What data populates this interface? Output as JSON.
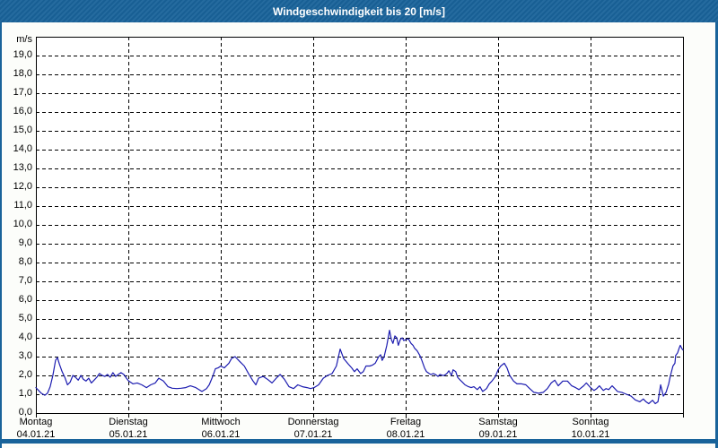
{
  "window": {
    "title": "Windgeschwindigkeit bis 20 [m/s]"
  },
  "colors": {
    "titlebar_bg": "#19639A",
    "frame": "#19639A",
    "page_bg": "#FCFDFA",
    "plot_bg": "#FFFFFF",
    "grid": "#000000",
    "series_line": "#1C1CB0",
    "title_text": "#FFFFFF",
    "axis_text": "#000000"
  },
  "chart_data": {
    "type": "line",
    "title": "Windgeschwindigkeit bis 20 [m/s]",
    "y_unit_label": "m/s",
    "ylim": [
      0,
      20
    ],
    "ytick_step": 1.0,
    "ytick_labels": [
      "0,0",
      "1,0",
      "2,0",
      "3,0",
      "4,0",
      "5,0",
      "6,0",
      "7,0",
      "8,0",
      "9,0",
      "10,0",
      "11,0",
      "12,0",
      "13,0",
      "14,0",
      "15,0",
      "16,0",
      "17,0",
      "18,0",
      "19,0"
    ],
    "grid": "dashed black horizontal lines every 1.0 m/s; dashed black vertical line at each day boundary",
    "legend": "none",
    "x_range_hours": [
      0,
      168
    ],
    "x_day_ticks": [
      {
        "day": "Montag",
        "date": "04.01.21",
        "hour": 0
      },
      {
        "day": "Dienstag",
        "date": "05.01.21",
        "hour": 24
      },
      {
        "day": "Mittwoch",
        "date": "06.01.21",
        "hour": 48
      },
      {
        "day": "Donnerstag",
        "date": "07.01.21",
        "hour": 72
      },
      {
        "day": "Freitag",
        "date": "08.01.21",
        "hour": 96
      },
      {
        "day": "Samstag",
        "date": "09.01.21",
        "hour": 120
      },
      {
        "day": "Sonntag",
        "date": "10.01.21",
        "hour": 144
      }
    ],
    "series": [
      {
        "name": "Windgeschwindigkeit",
        "color": "#1C1CB0",
        "points_hours_value": [
          [
            0.0,
            1.35
          ],
          [
            0.7,
            1.2
          ],
          [
            1.4,
            1.05
          ],
          [
            2.3,
            0.95
          ],
          [
            3.0,
            1.05
          ],
          [
            3.7,
            1.4
          ],
          [
            4.4,
            2.0
          ],
          [
            5.1,
            2.8
          ],
          [
            5.6,
            2.95
          ],
          [
            6.1,
            2.6
          ],
          [
            6.8,
            2.2
          ],
          [
            7.5,
            1.9
          ],
          [
            8.2,
            1.5
          ],
          [
            8.9,
            1.65
          ],
          [
            9.6,
            2.0
          ],
          [
            10.3,
            1.9
          ],
          [
            11.0,
            1.75
          ],
          [
            11.7,
            2.0
          ],
          [
            12.3,
            1.8
          ],
          [
            13.0,
            1.7
          ],
          [
            13.7,
            1.85
          ],
          [
            14.4,
            1.6
          ],
          [
            15.1,
            1.75
          ],
          [
            15.8,
            1.9
          ],
          [
            16.5,
            2.1
          ],
          [
            17.2,
            2.0
          ],
          [
            17.9,
            1.95
          ],
          [
            18.6,
            2.05
          ],
          [
            19.3,
            1.9
          ],
          [
            20.0,
            2.15
          ],
          [
            20.7,
            1.95
          ],
          [
            21.4,
            2.05
          ],
          [
            22.1,
            2.15
          ],
          [
            22.8,
            2.05
          ],
          [
            23.5,
            1.85
          ],
          [
            24.0,
            1.72
          ],
          [
            25.2,
            1.55
          ],
          [
            26.3,
            1.6
          ],
          [
            27.5,
            1.5
          ],
          [
            28.7,
            1.35
          ],
          [
            29.8,
            1.5
          ],
          [
            31.0,
            1.6
          ],
          [
            31.9,
            1.85
          ],
          [
            33.1,
            1.7
          ],
          [
            34.3,
            1.4
          ],
          [
            35.4,
            1.32
          ],
          [
            36.6,
            1.3
          ],
          [
            37.7,
            1.32
          ],
          [
            38.9,
            1.35
          ],
          [
            40.1,
            1.45
          ],
          [
            41.5,
            1.35
          ],
          [
            43.1,
            1.15
          ],
          [
            44.3,
            1.3
          ],
          [
            45.0,
            1.5
          ],
          [
            45.9,
            1.95
          ],
          [
            46.6,
            2.35
          ],
          [
            47.3,
            2.4
          ],
          [
            48.0,
            2.5
          ],
          [
            48.9,
            2.4
          ],
          [
            50.1,
            2.65
          ],
          [
            50.8,
            2.9
          ],
          [
            51.7,
            3.0
          ],
          [
            52.9,
            2.75
          ],
          [
            54.1,
            2.5
          ],
          [
            55.2,
            2.1
          ],
          [
            56.4,
            1.7
          ],
          [
            57.1,
            1.5
          ],
          [
            57.8,
            1.85
          ],
          [
            59.0,
            1.95
          ],
          [
            60.1,
            1.8
          ],
          [
            61.3,
            1.6
          ],
          [
            62.4,
            1.85
          ],
          [
            63.4,
            2.05
          ],
          [
            64.5,
            1.8
          ],
          [
            65.7,
            1.4
          ],
          [
            66.9,
            1.3
          ],
          [
            68.0,
            1.5
          ],
          [
            69.2,
            1.4
          ],
          [
            70.4,
            1.35
          ],
          [
            71.3,
            1.3
          ],
          [
            72.2,
            1.35
          ],
          [
            73.4,
            1.5
          ],
          [
            74.6,
            1.85
          ],
          [
            75.7,
            2.0
          ],
          [
            76.9,
            2.1
          ],
          [
            78.0,
            2.5
          ],
          [
            79.0,
            3.4
          ],
          [
            79.9,
            2.9
          ],
          [
            81.1,
            2.6
          ],
          [
            82.0,
            2.4
          ],
          [
            82.7,
            2.2
          ],
          [
            83.4,
            2.35
          ],
          [
            84.3,
            2.1
          ],
          [
            85.0,
            2.2
          ],
          [
            85.7,
            2.5
          ],
          [
            86.7,
            2.5
          ],
          [
            87.4,
            2.55
          ],
          [
            88.1,
            2.65
          ],
          [
            89.0,
            3.0
          ],
          [
            89.5,
            3.1
          ],
          [
            89.9,
            2.8
          ],
          [
            90.4,
            3.0
          ],
          [
            91.1,
            3.6
          ],
          [
            91.8,
            4.4
          ],
          [
            92.3,
            3.9
          ],
          [
            92.7,
            3.7
          ],
          [
            93.2,
            4.1
          ],
          [
            93.7,
            4.0
          ],
          [
            94.1,
            3.6
          ],
          [
            94.6,
            3.9
          ],
          [
            95.1,
            4.0
          ],
          [
            95.5,
            3.85
          ],
          [
            96.0,
            3.9
          ],
          [
            96.7,
            3.95
          ],
          [
            97.4,
            3.7
          ],
          [
            97.9,
            3.6
          ],
          [
            98.3,
            3.45
          ],
          [
            99.0,
            3.3
          ],
          [
            99.7,
            3.05
          ],
          [
            100.2,
            2.8
          ],
          [
            100.9,
            2.4
          ],
          [
            101.4,
            2.2
          ],
          [
            102.1,
            2.1
          ],
          [
            102.5,
            2.05
          ],
          [
            103.2,
            2.1
          ],
          [
            103.7,
            2.05
          ],
          [
            104.4,
            1.95
          ],
          [
            104.9,
            2.05
          ],
          [
            105.6,
            2.0
          ],
          [
            106.0,
            2.0
          ],
          [
            106.7,
            2.1
          ],
          [
            107.2,
            2.25
          ],
          [
            107.9,
            2.0
          ],
          [
            108.3,
            2.3
          ],
          [
            109.0,
            2.2
          ],
          [
            109.5,
            1.9
          ],
          [
            110.2,
            1.75
          ],
          [
            110.7,
            1.65
          ],
          [
            111.4,
            1.5
          ],
          [
            112.3,
            1.4
          ],
          [
            113.0,
            1.35
          ],
          [
            113.7,
            1.4
          ],
          [
            114.6,
            1.25
          ],
          [
            115.3,
            1.4
          ],
          [
            116.0,
            1.15
          ],
          [
            117.0,
            1.3
          ],
          [
            117.7,
            1.55
          ],
          [
            118.4,
            1.7
          ],
          [
            119.3,
            1.95
          ],
          [
            120.0,
            2.3
          ],
          [
            120.7,
            2.5
          ],
          [
            121.6,
            2.65
          ],
          [
            122.3,
            2.4
          ],
          [
            123.0,
            2.0
          ],
          [
            124.0,
            1.7
          ],
          [
            124.9,
            1.55
          ],
          [
            126.1,
            1.55
          ],
          [
            127.2,
            1.5
          ],
          [
            128.2,
            1.3
          ],
          [
            129.3,
            1.1
          ],
          [
            130.5,
            1.05
          ],
          [
            131.7,
            1.1
          ],
          [
            132.8,
            1.3
          ],
          [
            133.8,
            1.6
          ],
          [
            134.7,
            1.75
          ],
          [
            135.6,
            1.45
          ],
          [
            136.8,
            1.7
          ],
          [
            138.0,
            1.7
          ],
          [
            139.1,
            1.45
          ],
          [
            140.1,
            1.35
          ],
          [
            141.0,
            1.25
          ],
          [
            142.2,
            1.45
          ],
          [
            142.9,
            1.6
          ],
          [
            144.0,
            1.35
          ],
          [
            144.9,
            1.2
          ],
          [
            145.6,
            1.3
          ],
          [
            146.3,
            1.45
          ],
          [
            147.3,
            1.2
          ],
          [
            148.0,
            1.3
          ],
          [
            148.7,
            1.25
          ],
          [
            149.6,
            1.45
          ],
          [
            150.3,
            1.3
          ],
          [
            151.0,
            1.15
          ],
          [
            152.1,
            1.1
          ],
          [
            153.3,
            1.0
          ],
          [
            154.5,
            0.9
          ],
          [
            155.6,
            0.7
          ],
          [
            156.8,
            0.6
          ],
          [
            157.7,
            0.75
          ],
          [
            158.4,
            0.6
          ],
          [
            159.1,
            0.5
          ],
          [
            160.1,
            0.68
          ],
          [
            160.8,
            0.5
          ],
          [
            161.5,
            0.6
          ],
          [
            162.2,
            1.5
          ],
          [
            162.9,
            0.9
          ],
          [
            163.6,
            1.1
          ],
          [
            164.3,
            1.55
          ],
          [
            164.7,
            1.95
          ],
          [
            165.4,
            2.5
          ],
          [
            165.9,
            2.65
          ],
          [
            166.1,
            3.05
          ],
          [
            166.6,
            3.2
          ],
          [
            167.1,
            3.5
          ],
          [
            167.3,
            3.6
          ],
          [
            167.8,
            3.4
          ],
          [
            168.0,
            3.35
          ]
        ]
      }
    ]
  }
}
